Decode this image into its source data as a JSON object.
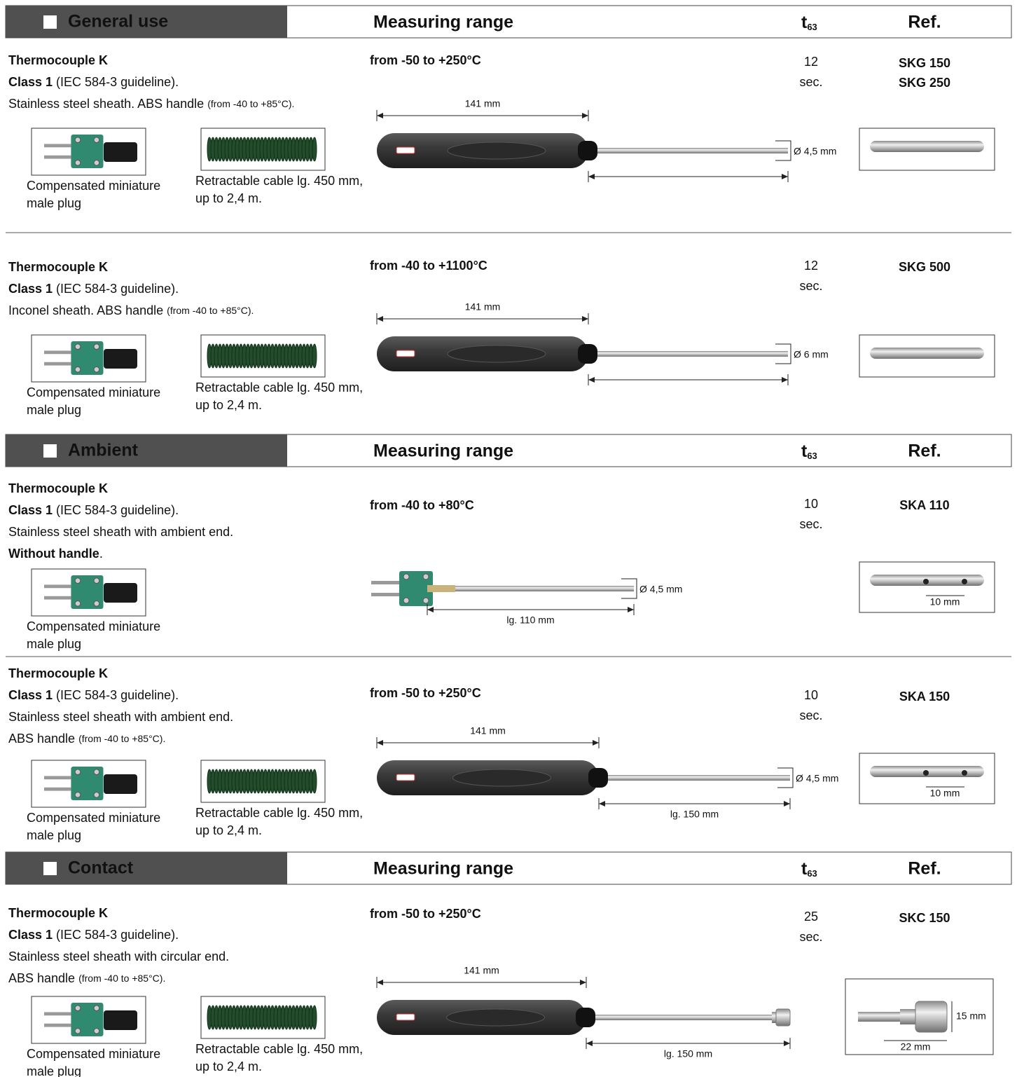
{
  "sections": [
    {
      "header": {
        "title": "General use",
        "range_heading": "Measuring range",
        "time_heading": {
          "base": "t",
          "sub": "63"
        },
        "ref_heading": "Ref."
      },
      "products": [
        {
          "lines": [
            [
              {
                "text": "Thermocouple K",
                "style": "bold"
              }
            ],
            [
              {
                "text": "Class 1",
                "style": "bold"
              },
              {
                "text": "(IEC 584-3 guideline).",
                "style": "normal"
              }
            ],
            [
              {
                "text": "Stainless steel sheath. ABS handle",
                "style": "normal"
              },
              {
                "text": "(from -40 to +85°C).",
                "style": "small"
              }
            ]
          ],
          "range": "from -50 to +250°C",
          "response": {
            "value": 12,
            "unit": "sec."
          },
          "refs": [
            "SKG 150",
            "SKG 250"
          ],
          "accessories": [
            {
              "caption": [
                "Compensated miniature",
                "male plug"
              ]
            },
            {
              "caption": [
                "Retractable cable lg. 450 mm,",
                "up to 2,4 m."
              ]
            }
          ],
          "dimensions": {
            "handle": "141 mm",
            "diameter": "Ø 4,5 mm"
          }
        },
        {
          "lines": [
            [
              {
                "text": "Thermocouple K",
                "style": "bold"
              }
            ],
            [
              {
                "text": "Class 1",
                "style": "bold"
              },
              {
                "text": "(IEC 584-3 guideline).",
                "style": "normal"
              }
            ],
            [
              {
                "text": "Inconel sheath. ABS handle",
                "style": "normal"
              },
              {
                "text": "(from -40 to +85°C).",
                "style": "small"
              }
            ]
          ],
          "range": "from -40 to +1100°C",
          "response": {
            "value": 12,
            "unit": "sec."
          },
          "refs": [
            "SKG 500"
          ],
          "accessories": [
            {
              "caption": [
                "Compensated miniature",
                "male plug"
              ]
            },
            {
              "caption": [
                "Retractable cable lg. 450 mm,",
                "up to 2,4 m."
              ]
            }
          ],
          "dimensions": {
            "handle": "141 mm",
            "diameter": "Ø 6 mm"
          }
        }
      ]
    },
    {
      "header": {
        "title": "Ambient",
        "range_heading": "Measuring range",
        "time_heading": {
          "base": "t",
          "sub": "63"
        },
        "ref_heading": "Ref."
      },
      "products": [
        {
          "lines": [
            [
              {
                "text": "Thermocouple K",
                "style": "bold"
              }
            ],
            [
              {
                "text": "Class 1",
                "style": "bold"
              },
              {
                "text": "(IEC 584-3 guideline).",
                "style": "normal"
              }
            ],
            [
              {
                "text": "Stainless steel sheath with ambient end.",
                "style": "normal"
              }
            ],
            [
              {
                "text": "Without handle",
                "style": "bold"
              },
              {
                "text": ".",
                "style": "tight"
              }
            ]
          ],
          "range": "from -40 to +80°C",
          "response": {
            "value": 10,
            "unit": "sec."
          },
          "refs": [
            "SKA 110"
          ],
          "accessories": [
            {
              "caption": [
                "Compensated miniature",
                "male plug"
              ]
            }
          ],
          "dimensions": {
            "diameter": "Ø 4,5 mm",
            "length": "lg. 110 mm",
            "spacing": "10 mm"
          }
        },
        {
          "lines": [
            [
              {
                "text": "Thermocouple K",
                "style": "bold"
              }
            ],
            [
              {
                "text": "Class 1",
                "style": "bold"
              },
              {
                "text": "(IEC 584-3 guideline).",
                "style": "normal"
              }
            ],
            [
              {
                "text": "Stainless steel sheath with ambient end.",
                "style": "normal"
              }
            ],
            [
              {
                "text": "ABS handle",
                "style": "normal"
              },
              {
                "text": "(from -40 to +85°C).",
                "style": "small"
              }
            ]
          ],
          "range": "from -50 to +250°C",
          "response": {
            "value": 10,
            "unit": "sec."
          },
          "refs": [
            "SKA 150"
          ],
          "accessories": [
            {
              "caption": [
                "Compensated miniature",
                "male plug"
              ]
            },
            {
              "caption": [
                "Retractable cable lg. 450 mm,",
                "up to 2,4 m."
              ]
            }
          ],
          "dimensions": {
            "handle": "141 mm",
            "diameter": "Ø 4,5 mm",
            "length": "lg. 150 mm",
            "spacing": "10 mm"
          }
        }
      ]
    },
    {
      "header": {
        "title": "Contact",
        "range_heading": "Measuring range",
        "time_heading": {
          "base": "t",
          "sub": "63"
        },
        "ref_heading": "Ref."
      },
      "products": [
        {
          "lines": [
            [
              {
                "text": "Thermocouple K",
                "style": "bold"
              }
            ],
            [
              {
                "text": "Class 1",
                "style": "bold"
              },
              {
                "text": "(IEC 584-3 guideline).",
                "style": "normal"
              }
            ],
            [
              {
                "text": "Stainless steel sheath with circular end.",
                "style": "normal"
              }
            ],
            [
              {
                "text": "ABS handle",
                "style": "normal"
              },
              {
                "text": "(from -40 to +85°C).",
                "style": "small"
              }
            ]
          ],
          "range": "from -50 to +250°C",
          "response": {
            "value": 25,
            "unit": "sec."
          },
          "refs": [
            "SKC 150"
          ],
          "accessories": [
            {
              "caption": [
                "Compensated miniature",
                "male plug"
              ]
            },
            {
              "caption": [
                "Retractable cable lg. 450 mm,",
                "up to 2,4 m."
              ]
            }
          ],
          "dimensions": {
            "handle": "141 mm",
            "length": "lg. 150 mm",
            "height": "15 mm",
            "width": "22 mm"
          }
        }
      ]
    }
  ]
}
